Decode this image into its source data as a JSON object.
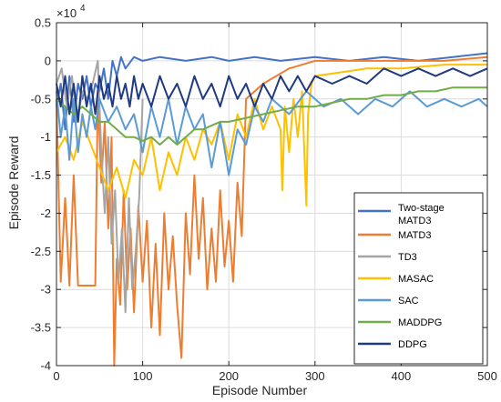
{
  "chart_data": {
    "type": "line",
    "xlabel": "Episode Number",
    "ylabel": "Episode Reward",
    "exponent_label": "×10",
    "exponent_power": "4",
    "xlim": [
      0,
      500
    ],
    "ylim": [
      -4,
      0.5
    ],
    "xticks": [
      0,
      100,
      200,
      300,
      400,
      500
    ],
    "yticks": [
      0.5,
      0,
      -0.5,
      -1,
      -1.5,
      -2,
      -2.5,
      -3,
      -3.5,
      -4
    ],
    "ytick_labels": [
      "0.5",
      "0",
      "-0.5",
      "-1",
      "-1.5",
      "-2",
      "-2.5",
      "-3",
      "-3.5",
      "-4"
    ],
    "xtick_labels": [
      "0",
      "100",
      "200",
      "300",
      "400",
      "500"
    ],
    "grid": true,
    "legend_position": "right",
    "series": [
      {
        "name": "Two-stage MATD3",
        "legend_lines": [
          "Two-stage",
          "MATD3"
        ],
        "color": "#4472C4",
        "points": [
          [
            0,
            -0.6
          ],
          [
            5,
            -0.3
          ],
          [
            10,
            -0.9
          ],
          [
            15,
            -0.2
          ],
          [
            20,
            -0.8
          ],
          [
            25,
            -0.3
          ],
          [
            30,
            -0.5
          ],
          [
            35,
            -0.2
          ],
          [
            40,
            -0.6
          ],
          [
            45,
            -0.3
          ],
          [
            50,
            -0.4
          ],
          [
            55,
            -0.1
          ],
          [
            60,
            -0.5
          ],
          [
            65,
            0.0
          ],
          [
            70,
            -0.2
          ],
          [
            75,
            0.05
          ],
          [
            80,
            -0.1
          ],
          [
            90,
            0.05
          ],
          [
            100,
            0.0
          ],
          [
            120,
            0.05
          ],
          [
            150,
            0.0
          ],
          [
            180,
            0.05
          ],
          [
            200,
            0.0
          ],
          [
            230,
            0.05
          ],
          [
            260,
            0.0
          ],
          [
            300,
            0.05
          ],
          [
            340,
            0.0
          ],
          [
            380,
            0.05
          ],
          [
            420,
            0.0
          ],
          [
            460,
            0.05
          ],
          [
            500,
            0.1
          ]
        ]
      },
      {
        "name": "MATD3",
        "color": "#ED7D31",
        "points": [
          [
            0,
            -0.5
          ],
          [
            5,
            -2.9
          ],
          [
            10,
            -1.8
          ],
          [
            15,
            -2.95
          ],
          [
            20,
            -1.5
          ],
          [
            25,
            -2.95
          ],
          [
            30,
            -2.95
          ],
          [
            40,
            -2.95
          ],
          [
            45,
            -2.95
          ],
          [
            48,
            -0.4
          ],
          [
            52,
            -1.6
          ],
          [
            56,
            -0.8
          ],
          [
            60,
            -2.2
          ],
          [
            64,
            -1.0
          ],
          [
            67,
            -4.0
          ],
          [
            70,
            -2.6
          ],
          [
            74,
            -3.2
          ],
          [
            78,
            -1.7
          ],
          [
            82,
            -3.0
          ],
          [
            86,
            -2.2
          ],
          [
            90,
            -3.3
          ],
          [
            95,
            -1.9
          ],
          [
            100,
            -2.9
          ],
          [
            105,
            -2.1
          ],
          [
            110,
            -3.5
          ],
          [
            115,
            -2.4
          ],
          [
            120,
            -3.6
          ],
          [
            125,
            -2.0
          ],
          [
            130,
            -3.0
          ],
          [
            135,
            -2.3
          ],
          [
            140,
            -3.2
          ],
          [
            145,
            -3.9
          ],
          [
            150,
            -2.0
          ],
          [
            155,
            -2.8
          ],
          [
            160,
            -1.5
          ],
          [
            165,
            -2.6
          ],
          [
            170,
            -1.8
          ],
          [
            175,
            -3.0
          ],
          [
            180,
            -2.2
          ],
          [
            185,
            -2.9
          ],
          [
            190,
            -1.7
          ],
          [
            195,
            -2.7
          ],
          [
            200,
            -2.1
          ],
          [
            205,
            -2.9
          ],
          [
            210,
            -1.6
          ],
          [
            215,
            -2.3
          ],
          [
            220,
            -0.5
          ],
          [
            240,
            -0.3
          ],
          [
            270,
            -0.1
          ],
          [
            300,
            0.0
          ],
          [
            350,
            0.0
          ],
          [
            400,
            0.0
          ],
          [
            450,
            0.0
          ],
          [
            500,
            0.05
          ]
        ]
      },
      {
        "name": "TD3",
        "color": "#A5A5A5",
        "points": [
          [
            0,
            -0.3
          ],
          [
            6,
            -0.1
          ],
          [
            12,
            -0.6
          ],
          [
            18,
            -0.2
          ],
          [
            24,
            -0.8
          ],
          [
            30,
            -0.4
          ],
          [
            36,
            -0.5
          ],
          [
            42,
            -0.3
          ],
          [
            48,
            0.0
          ],
          [
            52,
            -1.2
          ],
          [
            56,
            -2.0
          ],
          [
            60,
            -1.0
          ],
          [
            64,
            -2.4
          ],
          [
            68,
            -1.7
          ],
          [
            72,
            -2.9
          ],
          [
            76,
            -2.2
          ],
          [
            80,
            -3.3
          ],
          [
            84,
            -1.8
          ],
          [
            88,
            -3.0
          ],
          [
            92,
            -2.5
          ],
          [
            96,
            -1.8
          ],
          [
            100,
            -0.5
          ]
        ]
      },
      {
        "name": "MASAC",
        "color": "#FFC000",
        "points": [
          [
            0,
            -1.2
          ],
          [
            10,
            -1.0
          ],
          [
            20,
            -1.3
          ],
          [
            30,
            -0.8
          ],
          [
            40,
            -1.1
          ],
          [
            50,
            -1.4
          ],
          [
            60,
            -1.7
          ],
          [
            70,
            -1.4
          ],
          [
            80,
            -1.8
          ],
          [
            90,
            -1.3
          ],
          [
            100,
            -1.5
          ],
          [
            110,
            -1.0
          ],
          [
            120,
            -1.7
          ],
          [
            130,
            -1.2
          ],
          [
            140,
            -1.5
          ],
          [
            150,
            -1.0
          ],
          [
            160,
            -1.3
          ],
          [
            170,
            -0.9
          ],
          [
            180,
            -1.1
          ],
          [
            190,
            -0.8
          ],
          [
            200,
            -1.3
          ],
          [
            210,
            -0.7
          ],
          [
            220,
            -1.0
          ],
          [
            230,
            -0.5
          ],
          [
            240,
            -0.9
          ],
          [
            250,
            -0.6
          ],
          [
            260,
            -0.9
          ],
          [
            262,
            -1.7
          ],
          [
            265,
            -0.6
          ],
          [
            270,
            -1.2
          ],
          [
            275,
            -0.5
          ],
          [
            280,
            -1.0
          ],
          [
            285,
            -0.4
          ],
          [
            290,
            -1.9
          ],
          [
            292,
            -0.7
          ],
          [
            296,
            -0.3
          ],
          [
            300,
            -0.2
          ],
          [
            330,
            -0.15
          ],
          [
            360,
            -0.1
          ],
          [
            400,
            -0.1
          ],
          [
            450,
            -0.05
          ],
          [
            500,
            -0.05
          ]
        ]
      },
      {
        "name": "SAC",
        "color": "#5B9BD5",
        "points": [
          [
            0,
            -0.4
          ],
          [
            5,
            -1.0
          ],
          [
            10,
            -0.6
          ],
          [
            15,
            -1.3
          ],
          [
            20,
            -0.5
          ],
          [
            25,
            -1.2
          ],
          [
            30,
            -0.7
          ],
          [
            35,
            -1.0
          ],
          [
            40,
            -0.6
          ],
          [
            45,
            -0.9
          ],
          [
            50,
            -0.5
          ],
          [
            60,
            -0.8
          ],
          [
            70,
            -0.6
          ],
          [
            80,
            -0.9
          ],
          [
            90,
            -0.7
          ],
          [
            100,
            -1.2
          ],
          [
            110,
            -0.6
          ],
          [
            120,
            -1.0
          ],
          [
            130,
            -0.5
          ],
          [
            140,
            -1.1
          ],
          [
            150,
            -0.6
          ],
          [
            160,
            -0.9
          ],
          [
            170,
            -0.7
          ],
          [
            180,
            -1.4
          ],
          [
            190,
            -0.8
          ],
          [
            200,
            -1.5
          ],
          [
            210,
            -0.9
          ],
          [
            220,
            -1.1
          ],
          [
            230,
            -0.6
          ],
          [
            240,
            -0.8
          ],
          [
            250,
            -0.5
          ],
          [
            270,
            -0.7
          ],
          [
            290,
            -0.4
          ],
          [
            310,
            -0.6
          ],
          [
            330,
            -0.5
          ],
          [
            350,
            -0.7
          ],
          [
            370,
            -0.5
          ],
          [
            390,
            -0.6
          ],
          [
            410,
            -0.4
          ],
          [
            430,
            -0.6
          ],
          [
            450,
            -0.5
          ],
          [
            470,
            -0.6
          ],
          [
            490,
            -0.5
          ],
          [
            500,
            -0.6
          ]
        ]
      },
      {
        "name": "MADDPG",
        "color": "#70AD47",
        "points": [
          [
            0,
            -0.5
          ],
          [
            10,
            -0.6
          ],
          [
            20,
            -0.7
          ],
          [
            30,
            -0.6
          ],
          [
            40,
            -0.7
          ],
          [
            50,
            -0.8
          ],
          [
            60,
            -0.8
          ],
          [
            70,
            -0.9
          ],
          [
            80,
            -1.0
          ],
          [
            90,
            -1.0
          ],
          [
            100,
            -1.05
          ],
          [
            110,
            -1.0
          ],
          [
            120,
            -1.1
          ],
          [
            130,
            -1.0
          ],
          [
            140,
            -1.1
          ],
          [
            150,
            -1.0
          ],
          [
            160,
            -0.9
          ],
          [
            170,
            -0.9
          ],
          [
            180,
            -0.85
          ],
          [
            190,
            -0.8
          ],
          [
            200,
            -0.8
          ],
          [
            220,
            -0.75
          ],
          [
            240,
            -0.7
          ],
          [
            260,
            -0.65
          ],
          [
            280,
            -0.6
          ],
          [
            300,
            -0.6
          ],
          [
            320,
            -0.55
          ],
          [
            340,
            -0.5
          ],
          [
            360,
            -0.5
          ],
          [
            380,
            -0.45
          ],
          [
            400,
            -0.45
          ],
          [
            420,
            -0.4
          ],
          [
            440,
            -0.4
          ],
          [
            460,
            -0.35
          ],
          [
            480,
            -0.35
          ],
          [
            500,
            -0.35
          ]
        ]
      },
      {
        "name": "DDPG",
        "color": "#1F3A80",
        "points": [
          [
            0,
            -0.3
          ],
          [
            5,
            -0.6
          ],
          [
            10,
            -0.2
          ],
          [
            15,
            -0.7
          ],
          [
            20,
            -0.3
          ],
          [
            25,
            -0.8
          ],
          [
            30,
            -0.2
          ],
          [
            35,
            -0.6
          ],
          [
            40,
            -0.3
          ],
          [
            45,
            -0.7
          ],
          [
            50,
            -0.2
          ],
          [
            55,
            -0.5
          ],
          [
            60,
            -0.3
          ],
          [
            65,
            -0.6
          ],
          [
            70,
            -0.2
          ],
          [
            75,
            -0.5
          ],
          [
            80,
            -0.3
          ],
          [
            85,
            -0.6
          ],
          [
            90,
            -0.2
          ],
          [
            95,
            -0.5
          ],
          [
            100,
            -0.3
          ],
          [
            110,
            -0.6
          ],
          [
            120,
            -0.2
          ],
          [
            130,
            -0.5
          ],
          [
            140,
            -0.3
          ],
          [
            150,
            -0.6
          ],
          [
            160,
            -0.2
          ],
          [
            170,
            -0.5
          ],
          [
            180,
            -0.3
          ],
          [
            190,
            -0.6
          ],
          [
            200,
            -0.2
          ],
          [
            210,
            -0.5
          ],
          [
            220,
            -0.3
          ],
          [
            230,
            -0.6
          ],
          [
            240,
            -0.3
          ],
          [
            250,
            -0.5
          ],
          [
            260,
            -0.2
          ],
          [
            270,
            -0.4
          ],
          [
            280,
            -0.2
          ],
          [
            290,
            -0.4
          ],
          [
            300,
            -0.2
          ],
          [
            320,
            -0.3
          ],
          [
            340,
            -0.2
          ],
          [
            360,
            -0.3
          ],
          [
            380,
            -0.1
          ],
          [
            400,
            -0.2
          ],
          [
            420,
            -0.1
          ],
          [
            440,
            -0.2
          ],
          [
            460,
            -0.1
          ],
          [
            480,
            -0.2
          ],
          [
            500,
            -0.1
          ]
        ]
      }
    ]
  }
}
